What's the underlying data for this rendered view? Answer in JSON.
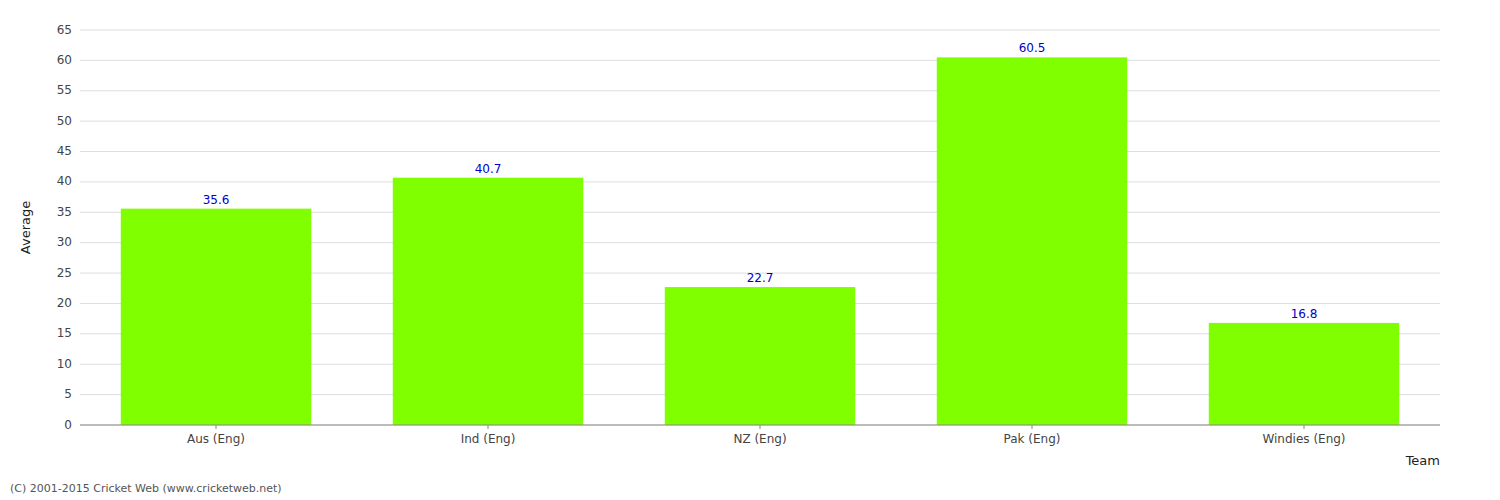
{
  "chart_data": {
    "type": "bar",
    "categories": [
      "Aus (Eng)",
      "Ind (Eng)",
      "NZ (Eng)",
      "Pak (Eng)",
      "Windies (Eng)"
    ],
    "values": [
      35.6,
      40.7,
      22.7,
      60.5,
      16.8
    ],
    "color": "#7FFF00",
    "xlabel": "Team",
    "ylabel": "Average",
    "ylim": [
      0,
      65
    ],
    "yticks": [
      0,
      5,
      10,
      15,
      20,
      25,
      30,
      35,
      40,
      45,
      50,
      55,
      60,
      65
    ],
    "grid": true,
    "data_labels": true,
    "annotations": [
      "(C) 2001-2015 Cricket Web (www.cricketweb.net)"
    ]
  }
}
